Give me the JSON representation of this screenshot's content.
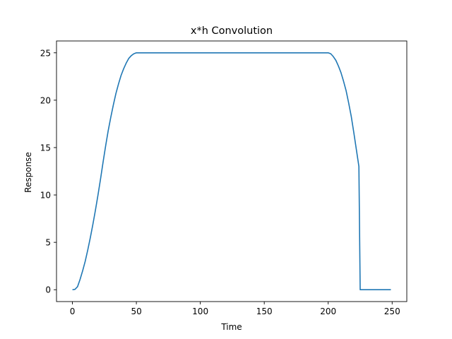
{
  "chart_data": {
    "type": "line",
    "title": "x*h Convolution",
    "xlabel": "Time",
    "ylabel": "Response",
    "xlim": [
      -12.45,
      261.45
    ],
    "ylim": [
      -1.25,
      26.25
    ],
    "xticks": [
      0,
      50,
      100,
      150,
      200,
      250
    ],
    "yticks": [
      0,
      5,
      10,
      15,
      20,
      25
    ],
    "xtick_labels": [
      "0",
      "50",
      "100",
      "150",
      "200",
      "250"
    ],
    "ytick_labels": [
      "0",
      "5",
      "10",
      "15",
      "20",
      "25"
    ],
    "grid": false,
    "legend": "none",
    "color": "#1f77b4",
    "series": [
      {
        "x": [
          0,
          2,
          4,
          6,
          8,
          10,
          12,
          14,
          16,
          18,
          20,
          22,
          24,
          26,
          28,
          30,
          32,
          34,
          36,
          38,
          40,
          42,
          44,
          46,
          48,
          50,
          60,
          80,
          100,
          120,
          140,
          160,
          180,
          200,
          202,
          204,
          206,
          208,
          210,
          212,
          214,
          216,
          218,
          220,
          222,
          224,
          225,
          230,
          240,
          249
        ],
        "y": [
          0,
          0.04,
          0.32,
          1.1,
          2.0,
          3.0,
          4.2,
          5.5,
          6.9,
          8.4,
          10.0,
          11.7,
          13.5,
          15.2,
          16.8,
          18.2,
          19.5,
          20.7,
          21.7,
          22.6,
          23.3,
          23.9,
          24.4,
          24.7,
          24.9,
          25,
          25,
          25,
          25,
          25,
          25,
          25,
          25,
          25,
          24.9,
          24.6,
          24.2,
          23.6,
          22.9,
          22.0,
          21.0,
          19.7,
          18.3,
          16.6,
          14.8,
          13.0,
          0,
          0,
          0,
          0
        ]
      }
    ]
  }
}
